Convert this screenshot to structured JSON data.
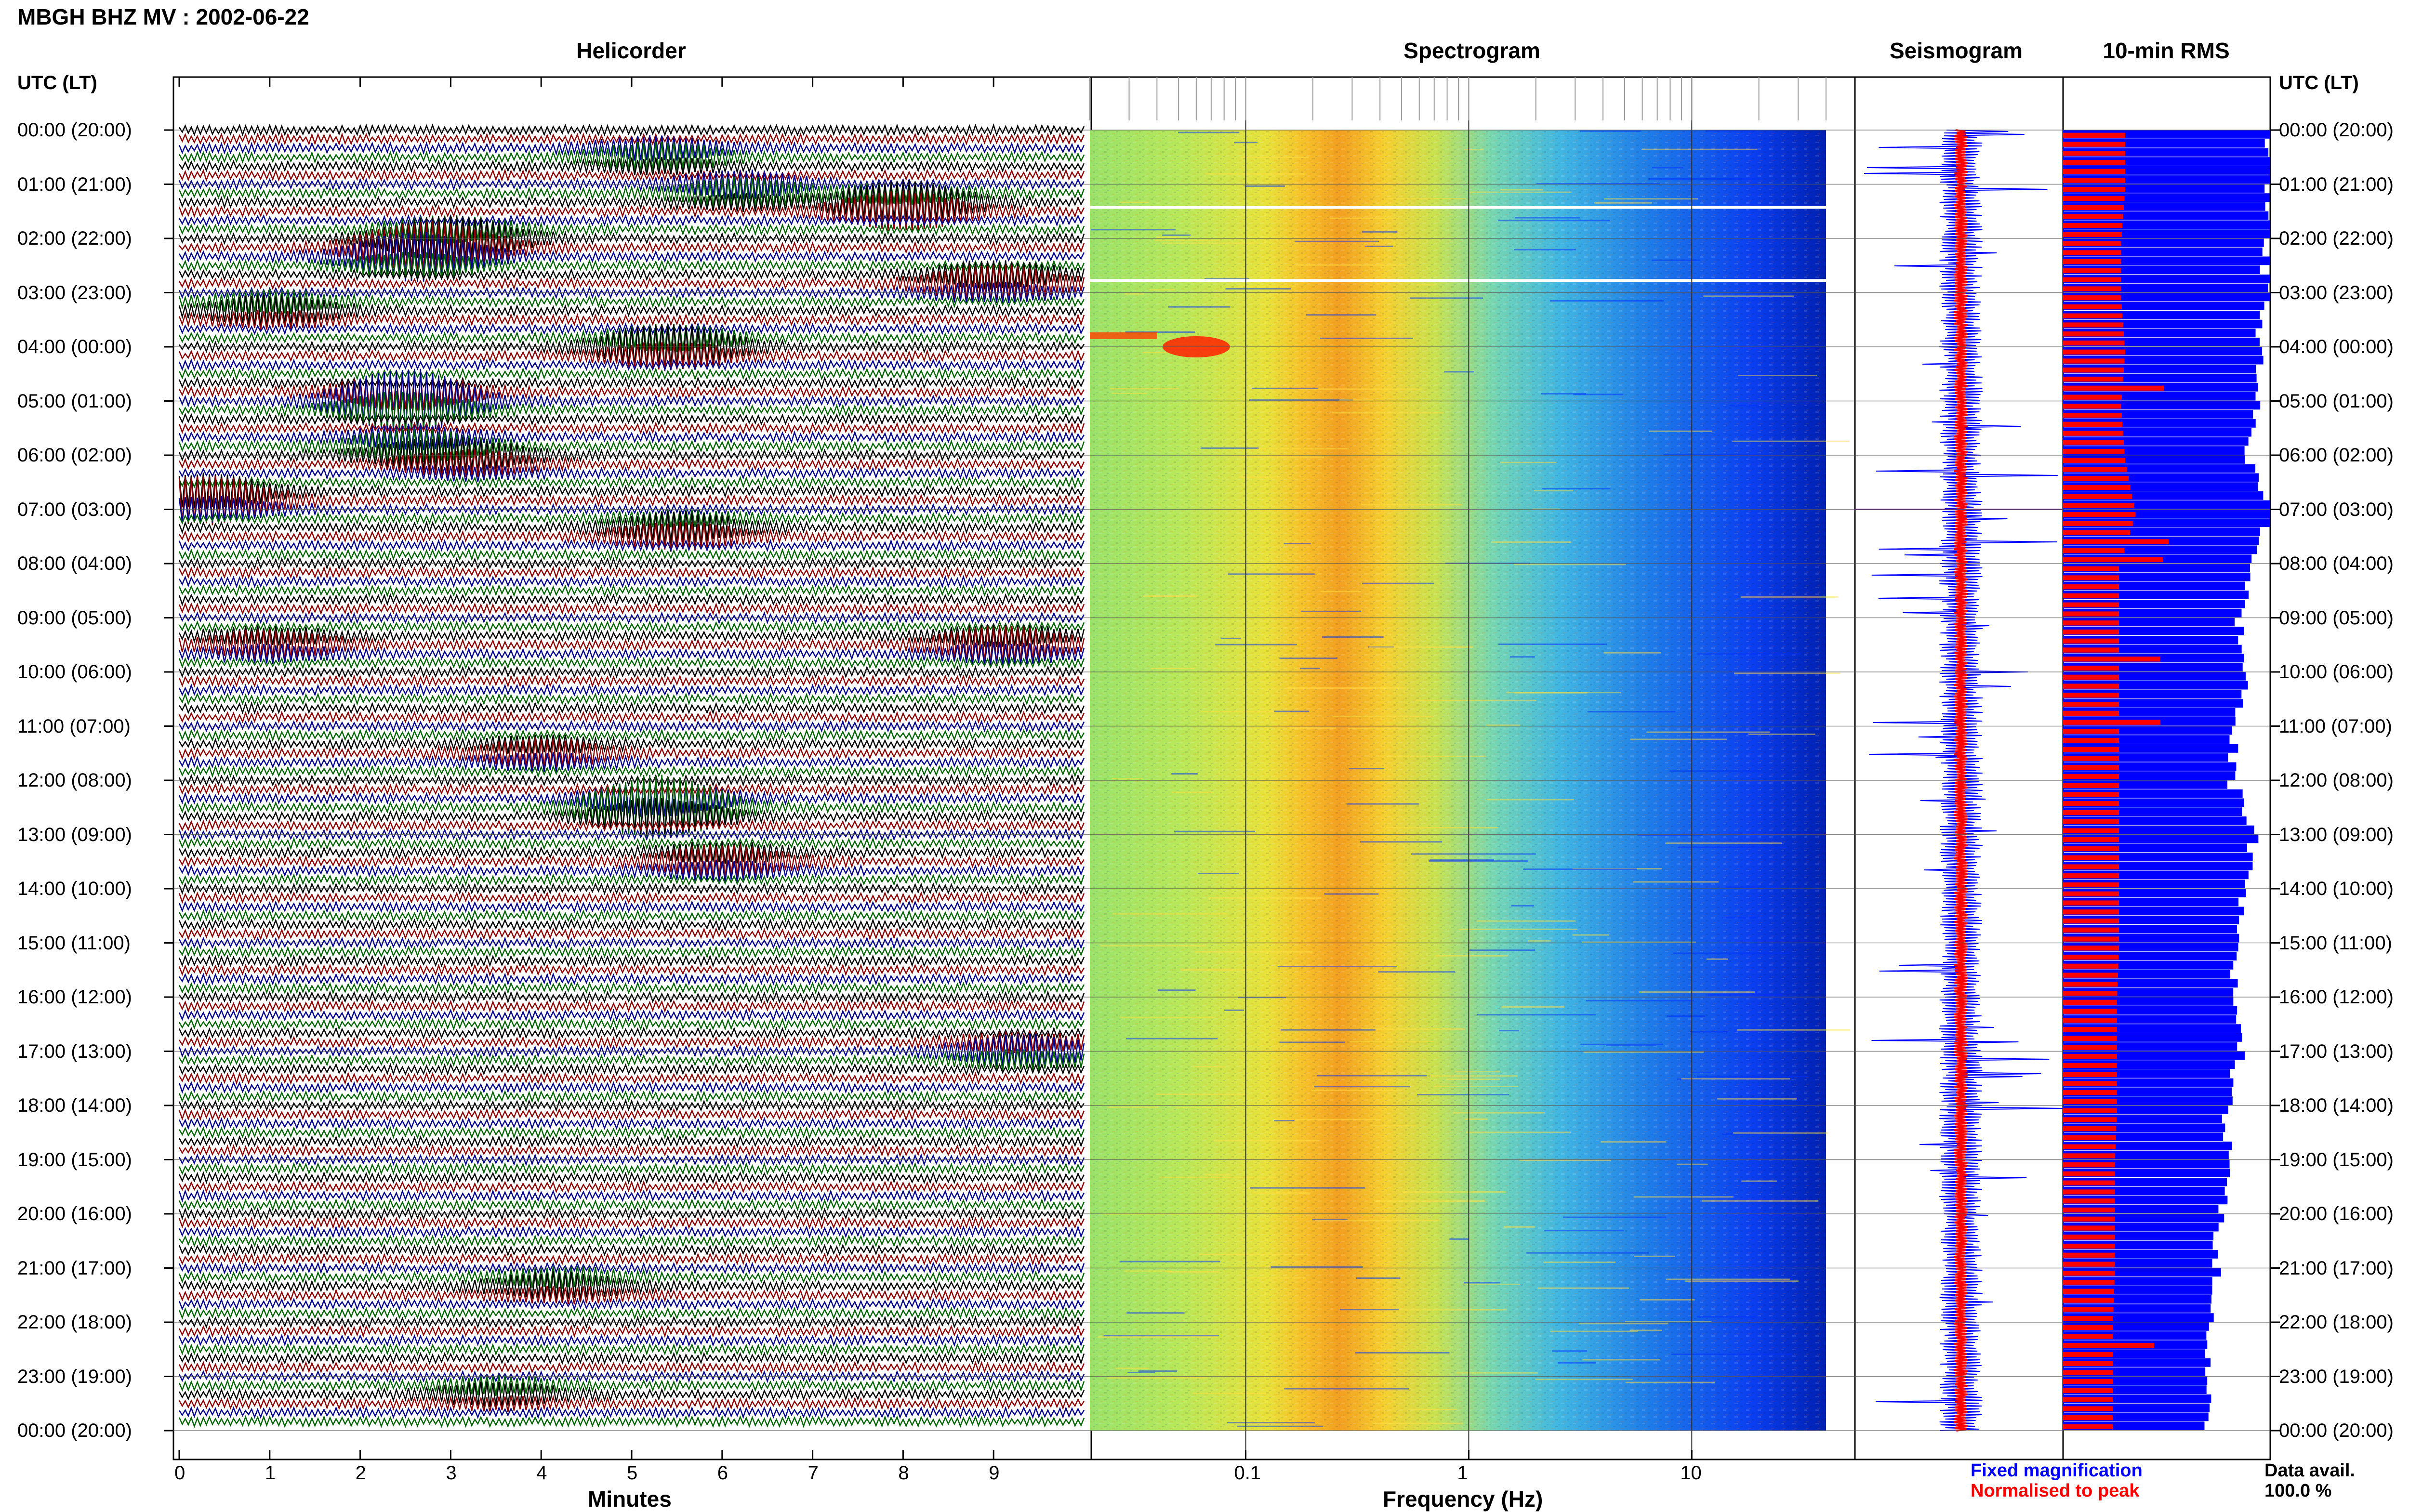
{
  "header": {
    "title": "MBGH BHZ MV : 2002-06-22",
    "utc_left": "UTC (LT)",
    "utc_right": "UTC (LT)"
  },
  "panels": {
    "helicorder": "Helicorder",
    "spectrogram": "Spectrogram",
    "seismogram": "Seismogram",
    "rms": "10-min RMS"
  },
  "time_labels": [
    "00:00 (20:00)",
    "01:00 (21:00)",
    "02:00 (22:00)",
    "03:00 (23:00)",
    "04:00 (00:00)",
    "05:00 (01:00)",
    "06:00 (02:00)",
    "07:00 (03:00)",
    "08:00 (04:00)",
    "09:00 (05:00)",
    "10:00 (06:00)",
    "11:00 (07:00)",
    "12:00 (08:00)",
    "13:00 (09:00)",
    "14:00 (10:00)",
    "15:00 (11:00)",
    "16:00 (12:00)",
    "17:00 (13:00)",
    "18:00 (14:00)",
    "19:00 (15:00)",
    "20:00 (16:00)",
    "21:00 (17:00)",
    "22:00 (18:00)",
    "23:00 (19:00)",
    "00:00 (20:00)"
  ],
  "axes": {
    "helicorder_xlabel": "Minutes",
    "helicorder_ticks": [
      "0",
      "1",
      "2",
      "3",
      "4",
      "5",
      "6",
      "7",
      "8",
      "9"
    ],
    "spectrogram_xlabel": "Frequency (Hz)",
    "spectrogram_ticks": [
      "0.1",
      "1",
      "10"
    ]
  },
  "legend": {
    "fixed": "Fixed magnification",
    "normalised": "Normalised to peak",
    "data_avail_label": "Data avail.",
    "data_avail_value": "100.0 %"
  },
  "colors": {
    "trace_black": "#000000",
    "trace_red": "#8b0000",
    "trace_blue": "#00008b",
    "trace_green": "#006400",
    "rms_blue": "#0000ff",
    "rms_red": "#ff0000",
    "legend_blue": "#0000ff",
    "legend_red": "#ff0000"
  },
  "chart_data": [
    {
      "type": "line",
      "title": "Helicorder",
      "xlabel": "Minutes",
      "xlim": [
        0,
        10
      ],
      "ylim_hours": [
        0,
        24
      ],
      "rows_per_hour": 6,
      "events": [
        {
          "hour": 0.45,
          "minute": 5.3,
          "amp": 0.7,
          "color": "black"
        },
        {
          "hour": 1.1,
          "minute": 6.2,
          "amp": 0.8,
          "color": "green"
        },
        {
          "hour": 1.4,
          "minute": 8.0,
          "amp": 1.2,
          "color": "red"
        },
        {
          "hour": 2.0,
          "minute": 3.0,
          "amp": 1.0,
          "color": "green"
        },
        {
          "hour": 2.3,
          "minute": 2.6,
          "amp": 1.2,
          "color": "green"
        },
        {
          "hour": 2.8,
          "minute": 9.0,
          "amp": 0.9,
          "color": "green"
        },
        {
          "hour": 3.3,
          "minute": 1.0,
          "amp": 0.7,
          "color": "red"
        },
        {
          "hour": 4.0,
          "minute": 5.4,
          "amp": 1.0,
          "color": "black"
        },
        {
          "hour": 5.0,
          "minute": 2.5,
          "amp": 1.5,
          "color": "black"
        },
        {
          "hour": 5.8,
          "minute": 2.6,
          "amp": 0.8,
          "color": "red"
        },
        {
          "hour": 6.1,
          "minute": 3.2,
          "amp": 0.7,
          "color": "blue"
        },
        {
          "hour": 6.8,
          "minute": 0.3,
          "amp": 1.2,
          "color": "red"
        },
        {
          "hour": 7.4,
          "minute": 5.5,
          "amp": 0.8,
          "color": "red"
        },
        {
          "hour": 9.5,
          "minute": 1.0,
          "amp": 0.6,
          "color": "blue"
        },
        {
          "hour": 9.5,
          "minute": 9.1,
          "amp": 0.8,
          "color": "blue"
        },
        {
          "hour": 11.5,
          "minute": 4.0,
          "amp": 0.6,
          "color": "blue"
        },
        {
          "hour": 12.5,
          "minute": 5.3,
          "amp": 1.5,
          "color": "red"
        },
        {
          "hour": 13.5,
          "minute": 6.0,
          "amp": 0.7,
          "color": "blue"
        },
        {
          "hour": 17.0,
          "minute": 9.3,
          "amp": 0.7,
          "color": "red"
        },
        {
          "hour": 21.3,
          "minute": 4.2,
          "amp": 0.6,
          "color": "black"
        },
        {
          "hour": 23.3,
          "minute": 3.5,
          "amp": 0.5,
          "color": "black"
        }
      ]
    },
    {
      "type": "heatmap",
      "title": "Spectrogram",
      "xlabel": "Frequency (Hz)",
      "x_scale": "log",
      "xlim": [
        0.02,
        40
      ],
      "ylim_hours": [
        0,
        24
      ],
      "peak_band_hz": [
        0.2,
        0.5
      ],
      "event": {
        "hour": 4.0,
        "freq_hz": 0.06
      }
    },
    {
      "type": "line",
      "title": "Seismogram",
      "series": [
        {
          "name": "Fixed magnification",
          "color": "blue"
        },
        {
          "name": "Normalised to peak",
          "color": "red"
        }
      ]
    },
    {
      "type": "bar",
      "title": "10-min RMS",
      "orientation": "horizontal",
      "ylim_hours": [
        0,
        24
      ],
      "series": [
        {
          "name": "Fixed magnification",
          "color": "blue",
          "hourly_values": [
            1.0,
            1.0,
            0.98,
            0.98,
            0.94,
            0.93,
            0.9,
            1.0,
            0.92,
            0.85,
            0.9,
            0.82,
            0.82,
            0.92,
            0.88,
            0.85,
            0.82,
            0.85,
            0.8,
            0.78,
            0.76,
            0.74,
            0.72,
            0.7,
            0.7
          ]
        },
        {
          "name": "Normalised to peak",
          "color": "red",
          "hourly_values": [
            0.3,
            0.3,
            0.28,
            0.28,
            0.3,
            0.28,
            0.3,
            0.35,
            0.27,
            0.27,
            0.27,
            0.27,
            0.27,
            0.27,
            0.27,
            0.27,
            0.26,
            0.26,
            0.26,
            0.25,
            0.25,
            0.25,
            0.24,
            0.24,
            0.24
          ]
        }
      ]
    }
  ]
}
